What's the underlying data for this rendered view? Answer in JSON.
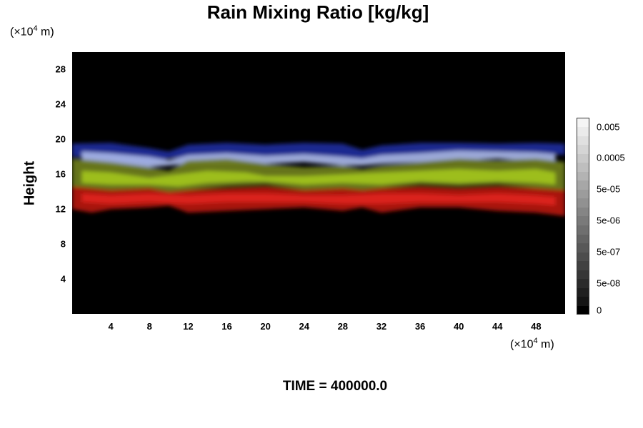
{
  "header": {
    "title": "Rain Mixing Ratio [kg/kg]"
  },
  "axes": {
    "y_unit_prefix": "(×10",
    "y_unit_exp": "4",
    "y_unit_suffix": " m)",
    "x_unit_prefix": "(×10",
    "x_unit_exp": "4",
    "x_unit_suffix": " m)",
    "ylabel": "Height"
  },
  "footer": {
    "time_label": "TIME = 400000.0"
  },
  "chart_data": {
    "type": "heatmap",
    "title": "Rain Mixing Ratio [kg/kg]",
    "xlabel": "",
    "ylabel": "Height",
    "x_unit": "(×10^4 m)",
    "y_unit": "(×10^4 m)",
    "xlim": [
      0,
      51
    ],
    "ylim": [
      0,
      30
    ],
    "x_ticks": [
      4,
      8,
      12,
      16,
      20,
      24,
      28,
      32,
      36,
      40,
      44,
      48
    ],
    "y_ticks": [
      4,
      8,
      12,
      16,
      20,
      24,
      28
    ],
    "background": "#000000",
    "layers": [
      {
        "color": "#1e2a9c",
        "x": [
          0,
          4,
          8,
          10,
          12,
          16,
          20,
          24,
          28,
          30,
          32,
          36,
          40,
          44,
          48,
          51
        ],
        "top": [
          19.5,
          19.6,
          19.0,
          18.6,
          19.4,
          19.6,
          19.4,
          19.6,
          19.5,
          18.8,
          19.3,
          19.6,
          19.6,
          19.5,
          19.6,
          19.5
        ],
        "bottom": [
          18.0,
          17.6,
          17.2,
          17.8,
          18.0,
          18.2,
          18.0,
          18.2,
          17.8,
          17.6,
          18.0,
          18.3,
          18.5,
          18.6,
          18.4,
          18.2
        ]
      },
      {
        "color": "#a8b6e8",
        "x": [
          1,
          4,
          8,
          10,
          12,
          16,
          20,
          24,
          28,
          30,
          32,
          36,
          40,
          44,
          48,
          50
        ],
        "top": [
          18.6,
          18.4,
          18.0,
          17.6,
          18.2,
          18.4,
          18.1,
          18.3,
          18.0,
          17.8,
          18.2,
          18.4,
          18.7,
          18.6,
          18.5,
          18.3
        ],
        "bottom": [
          17.4,
          17.0,
          16.8,
          17.0,
          17.2,
          17.3,
          17.2,
          17.4,
          17.0,
          17.0,
          17.2,
          17.4,
          17.6,
          17.8,
          17.5,
          17.3
        ]
      },
      {
        "color": "#6f7e1c",
        "x": [
          0,
          4,
          8,
          10,
          12,
          16,
          20,
          24,
          28,
          30,
          32,
          36,
          40,
          44,
          48,
          51
        ],
        "top": [
          17.8,
          17.4,
          16.8,
          16.4,
          17.6,
          17.8,
          17.2,
          16.8,
          17.0,
          16.6,
          17.0,
          17.4,
          17.8,
          17.6,
          17.8,
          17.4
        ],
        "bottom": [
          14.6,
          14.2,
          14.4,
          14.0,
          14.2,
          14.6,
          14.8,
          14.2,
          14.4,
          14.2,
          14.4,
          14.8,
          14.6,
          14.8,
          14.4,
          14.2
        ]
      },
      {
        "color": "#a2c41e",
        "x": [
          1,
          4,
          8,
          11,
          14,
          18,
          20,
          24,
          28,
          32,
          36,
          40,
          44,
          48,
          50
        ],
        "top": [
          16.4,
          16.2,
          15.6,
          16.0,
          16.4,
          16.2,
          15.8,
          15.8,
          16.0,
          16.2,
          16.4,
          16.6,
          16.4,
          16.6,
          16.2
        ],
        "bottom": [
          15.0,
          14.8,
          14.8,
          14.6,
          15.0,
          15.2,
          15.2,
          14.8,
          15.0,
          14.8,
          15.2,
          15.0,
          15.2,
          15.0,
          14.8
        ]
      },
      {
        "color": "#b5140f",
        "x": [
          0,
          2,
          4,
          8,
          10,
          12,
          16,
          20,
          24,
          28,
          30,
          32,
          36,
          40,
          44,
          48,
          51
        ],
        "top": [
          14.6,
          14.4,
          14.2,
          14.4,
          14.0,
          14.2,
          14.4,
          14.6,
          14.2,
          14.4,
          14.2,
          14.4,
          14.6,
          14.4,
          14.6,
          14.4,
          14.2
        ],
        "bottom": [
          12.0,
          11.6,
          12.0,
          12.2,
          12.4,
          11.6,
          11.8,
          12.0,
          12.2,
          11.8,
          12.2,
          11.6,
          12.2,
          12.2,
          11.8,
          11.6,
          11.2
        ]
      },
      {
        "color": "#e0241c",
        "x": [
          1,
          4,
          8,
          12,
          16,
          20,
          24,
          28,
          32,
          36,
          40,
          44,
          48,
          50
        ],
        "top": [
          13.8,
          13.6,
          13.8,
          13.6,
          13.8,
          13.8,
          13.6,
          13.6,
          13.8,
          13.8,
          13.6,
          13.8,
          13.6,
          13.4
        ],
        "bottom": [
          12.8,
          12.6,
          12.8,
          12.6,
          12.8,
          12.8,
          12.8,
          12.6,
          12.6,
          12.8,
          12.8,
          12.8,
          12.6,
          12.4
        ]
      }
    ],
    "colorbar": {
      "colors": [
        "#000000",
        "#141414",
        "#1f1f1f",
        "#2b2b2b",
        "#363636",
        "#414141",
        "#4d4d4d",
        "#585858",
        "#636363",
        "#6f6f6f",
        "#7a7a7a",
        "#858585",
        "#919191",
        "#9c9c9c",
        "#a7a7a7",
        "#b3b3b3",
        "#bebebe",
        "#c9c9c9",
        "#d5d5d5",
        "#e0e0e0",
        "#ebebeb",
        "#f5f5f5"
      ],
      "labels": [
        {
          "text": "0",
          "step": 0
        },
        {
          "text": "5e-08",
          "step": 3
        },
        {
          "text": "5e-07",
          "step": 6.5
        },
        {
          "text": "5e-06",
          "step": 10
        },
        {
          "text": "5e-05",
          "step": 13.5
        },
        {
          "text": "0.0005",
          "step": 17
        },
        {
          "text": "0.005",
          "step": 20.5
        }
      ]
    }
  }
}
